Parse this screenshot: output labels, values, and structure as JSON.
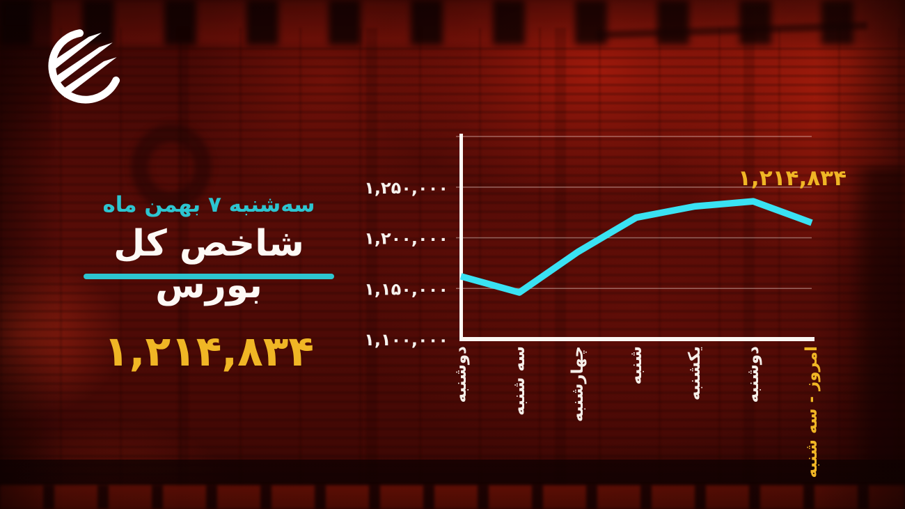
{
  "header": {
    "date_line": "سه‌شنبه ۷ بهمن ماه",
    "title": "شاخص کل بورس",
    "index_value": "۱,۲۱۴,۸۳۴"
  },
  "icons": {
    "brand_logo": "winged-circle-logo"
  },
  "colors": {
    "accent_cyan": "#2dc5d0",
    "accent_yellow": "#f0b625",
    "chart_line": "#3ae2f3",
    "text_white": "#f7f3ef",
    "background_red": "#560c07"
  },
  "chart_data": {
    "type": "line",
    "title": "",
    "xlabel": "",
    "ylabel": "",
    "categories": [
      "دوشنبه",
      "سه شنبه",
      "چهارشنبه",
      "شنبه",
      "یکشنبه",
      "دوشنبه",
      "امروز - سه شنبه"
    ],
    "values": [
      1162000,
      1146000,
      1186000,
      1220000,
      1231000,
      1236000,
      1214834
    ],
    "last_point_label": "۱,۲۱۴,۸۳۴",
    "highlight_last_category": true,
    "ylim": [
      1100000,
      1300000
    ],
    "y_tick_values": [
      1250000,
      1200000,
      1150000,
      1100000
    ],
    "y_tick_labels": [
      "۱,۲۵۰,۰۰۰",
      "۱,۲۰۰,۰۰۰",
      "۱,۱۵۰,۰۰۰",
      "۱,۱۰۰,۰۰۰"
    ],
    "gridline_values": [
      1300000,
      1250000,
      1200000,
      1150000
    ],
    "grid": true,
    "legend_position": "none",
    "line_color": "#3ae2f3"
  }
}
